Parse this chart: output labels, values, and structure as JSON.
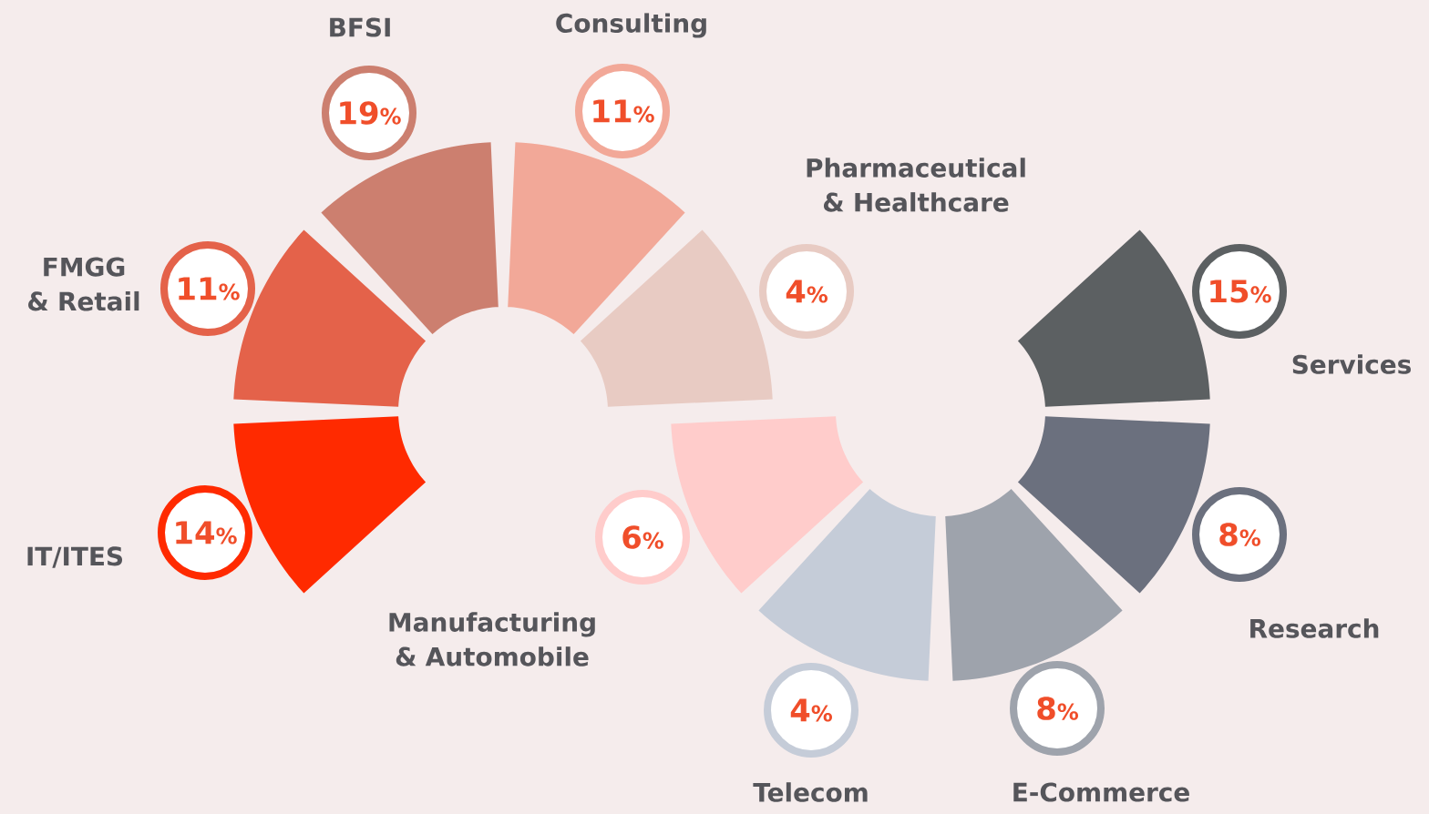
{
  "chart_data": {
    "type": "other",
    "categories": [
      "BFSI",
      "Consulting",
      "Pharmaceutical & Healthcare",
      "Services",
      "Research",
      "E-Commerce",
      "Telecom",
      "Manufacturing & Automobile",
      "IT/ITES",
      "FMGG & Retail"
    ],
    "values": [
      19,
      11,
      4,
      15,
      8,
      8,
      4,
      6,
      14,
      11
    ],
    "data_labels": true,
    "ylabel": "%",
    "colors": [
      "#cc7f6f",
      "#f2a898",
      "#e8cbc3",
      "#5c6062",
      "#6b707e",
      "#9ea3ac",
      "#c5ccd8",
      "#ffcccb",
      "#ff2a00",
      "#e4624a"
    ]
  }
}
